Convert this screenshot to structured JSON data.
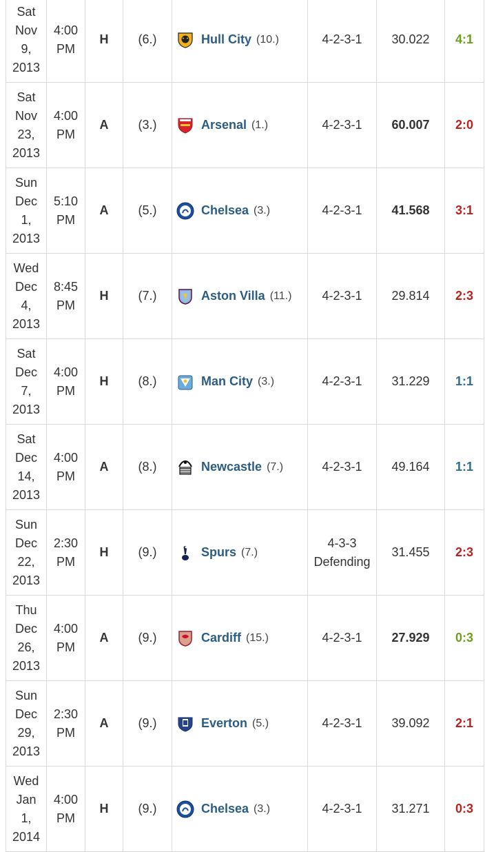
{
  "matches": [
    {
      "date": [
        "Sat",
        "Nov",
        "9,",
        "2013"
      ],
      "time": [
        "4:00",
        "PM"
      ],
      "venue": "H",
      "rank": "(6.)",
      "opponent": "Hull City",
      "opponent_rank": "(10.)",
      "crest": "hull-city-crest-icon",
      "formation": [
        "4-2-3-1"
      ],
      "attendance": "30.022",
      "attendance_bold": false,
      "result": "4:1",
      "outcome": "win"
    },
    {
      "date": [
        "Sat",
        "Nov",
        "23,",
        "2013"
      ],
      "time": [
        "4:00",
        "PM"
      ],
      "venue": "A",
      "rank": "(3.)",
      "opponent": "Arsenal",
      "opponent_rank": "(1.)",
      "crest": "arsenal-crest-icon",
      "formation": [
        "4-2-3-1"
      ],
      "attendance": "60.007",
      "attendance_bold": true,
      "result": "2:0",
      "outcome": "loss"
    },
    {
      "date": [
        "Sun",
        "Dec",
        "1,",
        "2013"
      ],
      "time": [
        "5:10",
        "PM"
      ],
      "venue": "A",
      "rank": "(5.)",
      "opponent": "Chelsea",
      "opponent_rank": "(3.)",
      "crest": "chelsea-crest-icon",
      "formation": [
        "4-2-3-1"
      ],
      "attendance": "41.568",
      "attendance_bold": true,
      "result": "3:1",
      "outcome": "loss"
    },
    {
      "date": [
        "Wed",
        "Dec",
        "4,",
        "2013"
      ],
      "time": [
        "8:45",
        "PM"
      ],
      "venue": "H",
      "rank": "(7.)",
      "opponent": "Aston Villa",
      "opponent_rank": "(11.)",
      "crest": "aston-villa-crest-icon",
      "formation": [
        "4-2-3-1"
      ],
      "attendance": "29.814",
      "attendance_bold": false,
      "result": "2:3",
      "outcome": "loss"
    },
    {
      "date": [
        "Sat",
        "Dec",
        "7,",
        "2013"
      ],
      "time": [
        "4:00",
        "PM"
      ],
      "venue": "H",
      "rank": "(8.)",
      "opponent": "Man City",
      "opponent_rank": "(3.)",
      "crest": "man-city-crest-icon",
      "formation": [
        "4-2-3-1"
      ],
      "attendance": "31.229",
      "attendance_bold": false,
      "result": "1:1",
      "outcome": "draw"
    },
    {
      "date": [
        "Sat",
        "Dec",
        "14,",
        "2013"
      ],
      "time": [
        "4:00",
        "PM"
      ],
      "venue": "A",
      "rank": "(8.)",
      "opponent": "Newcastle",
      "opponent_rank": "(7.)",
      "crest": "newcastle-crest-icon",
      "formation": [
        "4-2-3-1"
      ],
      "attendance": "49.164",
      "attendance_bold": false,
      "result": "1:1",
      "outcome": "draw"
    },
    {
      "date": [
        "Sun",
        "Dec",
        "22,",
        "2013"
      ],
      "time": [
        "2:30",
        "PM"
      ],
      "venue": "H",
      "rank": "(9.)",
      "opponent": "Spurs",
      "opponent_rank": "(7.)",
      "crest": "spurs-crest-icon",
      "formation": [
        "4-3-3",
        "Defending"
      ],
      "attendance": "31.455",
      "attendance_bold": false,
      "result": "2:3",
      "outcome": "loss"
    },
    {
      "date": [
        "Thu",
        "Dec",
        "26,",
        "2013"
      ],
      "time": [
        "4:00",
        "PM"
      ],
      "venue": "A",
      "rank": "(9.)",
      "opponent": "Cardiff",
      "opponent_rank": "(15.)",
      "crest": "cardiff-crest-icon",
      "formation": [
        "4-2-3-1"
      ],
      "attendance": "27.929",
      "attendance_bold": true,
      "result": "0:3",
      "outcome": "win"
    },
    {
      "date": [
        "Sun",
        "Dec",
        "29,",
        "2013"
      ],
      "time": [
        "2:30",
        "PM"
      ],
      "venue": "A",
      "rank": "(9.)",
      "opponent": "Everton",
      "opponent_rank": "(5.)",
      "crest": "everton-crest-icon",
      "formation": [
        "4-2-3-1"
      ],
      "attendance": "39.092",
      "attendance_bold": false,
      "result": "2:1",
      "outcome": "loss"
    },
    {
      "date": [
        "Wed",
        "Jan",
        "1,",
        "2014"
      ],
      "time": [
        "4:00",
        "PM"
      ],
      "venue": "H",
      "rank": "(9.)",
      "opponent": "Chelsea",
      "opponent_rank": "(3.)",
      "crest": "chelsea-crest-icon",
      "formation": [
        "4-2-3-1"
      ],
      "attendance": "31.271",
      "attendance_bold": false,
      "result": "0:3",
      "outcome": "loss"
    }
  ],
  "colors": {
    "team_link": "#2b5d84",
    "win": "#6e9e1e",
    "loss": "#b8231f",
    "draw": "#2b6c9a",
    "border": "#d9d9d9"
  }
}
